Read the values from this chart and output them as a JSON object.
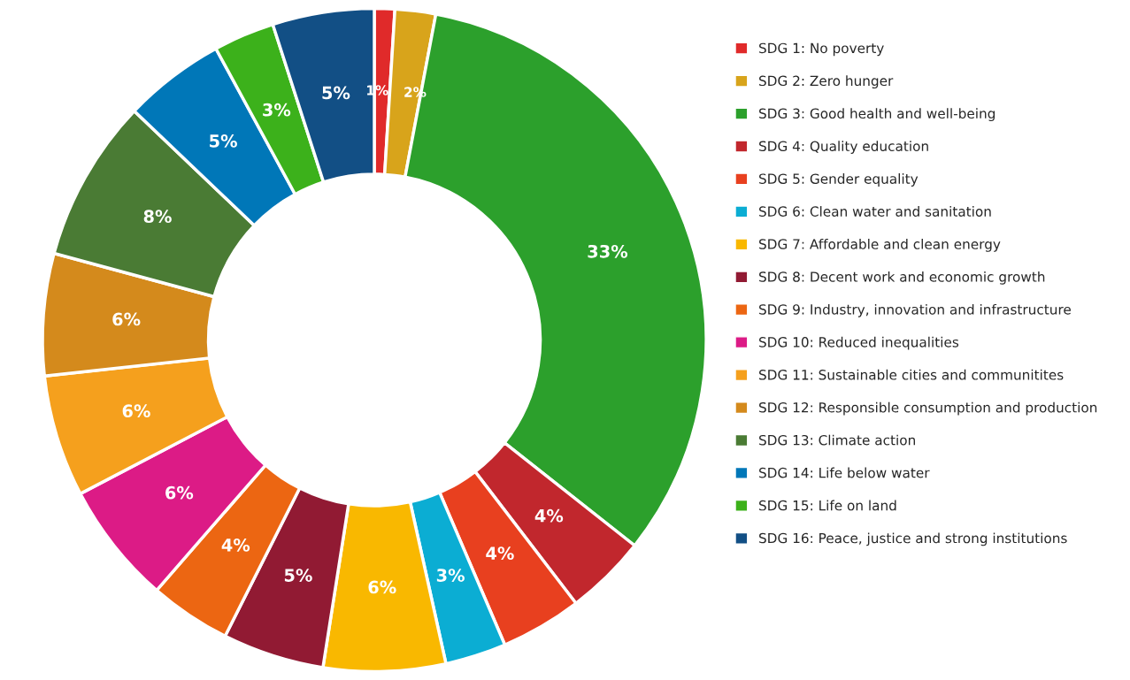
{
  "chart_data": {
    "type": "donut",
    "categories": [
      "SDG 1: No poverty",
      "SDG 2: Zero hunger",
      "SDG 3: Good health and well-being",
      "SDG 4: Quality education",
      "SDG 5: Gender equality",
      "SDG 6: Clean water and sanitation",
      "SDG 7: Affordable and clean energy",
      "SDG 8: Decent work and economic growth",
      "SDG 9: Industry, innovation and infrastructure",
      "SDG 10: Reduced inequalities",
      "SDG 11: Sustainable cities and communitites",
      "SDG 12: Responsible consumption and production",
      "SDG 13: Climate action",
      "SDG 14: Life below water",
      "SDG 15: Life on land",
      "SDG 16: Peace, justice and strong institutions"
    ],
    "values": [
      1,
      2,
      33,
      4,
      4,
      3,
      6,
      5,
      4,
      6,
      6,
      6,
      8,
      5,
      3,
      5
    ],
    "value_labels": [
      "1%",
      "2%",
      "33%",
      "4%",
      "4%",
      "3%",
      "6%",
      "5%",
      "4%",
      "6%",
      "6%",
      "6%",
      "8%",
      "5%",
      "3%",
      "5%"
    ],
    "colors": [
      "#e02a2a",
      "#d8a41b",
      "#2ca02c",
      "#c1272d",
      "#e8401f",
      "#0badd3",
      "#f9b800",
      "#911a33",
      "#ec6612",
      "#dc1b86",
      "#f5a01d",
      "#d48a1c",
      "#4a7b34",
      "#0077b8",
      "#3cb11b",
      "#124f85"
    ],
    "legend": "right"
  }
}
